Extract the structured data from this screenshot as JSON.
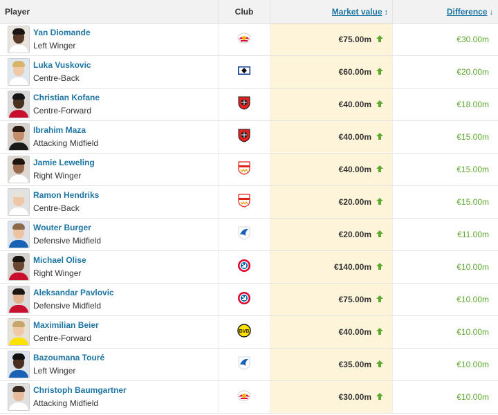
{
  "header": {
    "player_label": "Player",
    "club_label": "Club",
    "market_value_label": "Market value",
    "market_value_sort_indicator": "↕",
    "difference_label": "Difference",
    "difference_sort_indicator": "↓"
  },
  "colors": {
    "link": "#1d75a3",
    "increase": "#5da82e",
    "highlight_column": "#fdf4d9"
  },
  "rows": [
    {
      "name": "Yan Diomande",
      "position": "Left Winger",
      "club_icon": "rb-leipzig-crest-icon",
      "market_value": "€75.00m",
      "difference": "€30.00m",
      "trend": "up-arrow-icon"
    },
    {
      "name": "Luka Vuskovic",
      "position": "Centre-Back",
      "club_icon": "hamburger-sv-crest-icon",
      "market_value": "€60.00m",
      "difference": "€20.00m",
      "trend": "up-arrow-icon"
    },
    {
      "name": "Christian Kofane",
      "position": "Centre-Forward",
      "club_icon": "bayer-leverkusen-crest-icon",
      "market_value": "€40.00m",
      "difference": "€18.00m",
      "trend": "up-arrow-icon"
    },
    {
      "name": "Ibrahim Maza",
      "position": "Attacking Midfield",
      "club_icon": "bayer-leverkusen-crest-icon",
      "market_value": "€40.00m",
      "difference": "€15.00m",
      "trend": "up-arrow-icon"
    },
    {
      "name": "Jamie Leweling",
      "position": "Right Winger",
      "club_icon": "vfb-stuttgart-crest-icon",
      "market_value": "€40.00m",
      "difference": "€15.00m",
      "trend": "up-arrow-icon"
    },
    {
      "name": "Ramon Hendriks",
      "position": "Centre-Back",
      "club_icon": "vfb-stuttgart-crest-icon",
      "market_value": "€20.00m",
      "difference": "€15.00m",
      "trend": "up-arrow-icon"
    },
    {
      "name": "Wouter Burger",
      "position": "Defensive Midfield",
      "club_icon": "tsg-hoffenheim-crest-icon",
      "market_value": "€20.00m",
      "difference": "€11.00m",
      "trend": "up-arrow-icon"
    },
    {
      "name": "Michael Olise",
      "position": "Right Winger",
      "club_icon": "bayern-munich-crest-icon",
      "market_value": "€140.00m",
      "difference": "€10.00m",
      "trend": "up-arrow-icon"
    },
    {
      "name": "Aleksandar Pavlovic",
      "position": "Defensive Midfield",
      "club_icon": "bayern-munich-crest-icon",
      "market_value": "€75.00m",
      "difference": "€10.00m",
      "trend": "up-arrow-icon"
    },
    {
      "name": "Maximilian Beier",
      "position": "Centre-Forward",
      "club_icon": "borussia-dortmund-crest-icon",
      "market_value": "€40.00m",
      "difference": "€10.00m",
      "trend": "up-arrow-icon"
    },
    {
      "name": "Bazoumana Touré",
      "position": "Left Winger",
      "club_icon": "tsg-hoffenheim-crest-icon",
      "market_value": "€35.00m",
      "difference": "€10.00m",
      "trend": "up-arrow-icon"
    },
    {
      "name": "Christoph Baumgartner",
      "position": "Attacking Midfield",
      "club_icon": "rb-leipzig-crest-icon",
      "market_value": "€30.00m",
      "difference": "€10.00m",
      "trend": "up-arrow-icon"
    }
  ]
}
